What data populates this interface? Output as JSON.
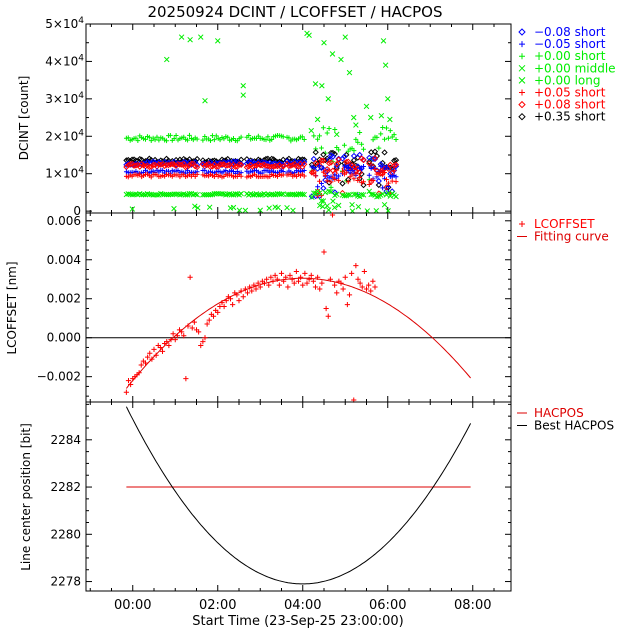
{
  "title": "20250924 DCINT / LCOFFSET / HACPOS",
  "xlabel": "Start Time (23-Sep-25 23:00:00)",
  "x_tick_labels": [
    "00:00",
    "02:00",
    "04:00",
    "06:00",
    "08:00"
  ],
  "x_ticks_hours": [
    1,
    3,
    5,
    7,
    9
  ],
  "xlim_hours": [
    -0.1,
    9.9
  ],
  "colors": {
    "black": "#000000",
    "blue": "#0000ff",
    "green": "#00ee00",
    "red": "#ff0000",
    "fit": "#dd0000"
  },
  "chart_data": [
    {
      "type": "scatter",
      "panel": "DCINT",
      "ylabel": "DCINT [count]",
      "ylim": [
        -500,
        50000
      ],
      "y_ticks": [
        0,
        10000,
        20000,
        30000,
        40000,
        50000
      ],
      "y_tick_labels": [
        "0",
        "1×10^4",
        "2×10^4",
        "3×10^4",
        "4×10^4",
        "5×10^4"
      ],
      "time_range_hours": [
        0.85,
        7.2
      ],
      "legend": [
        {
          "label": "−0.08 short",
          "marker": "diamond",
          "color": "#0000ff"
        },
        {
          "label": "−0.05 short",
          "marker": "plus",
          "color": "#0000ff"
        },
        {
          "label": "+0.00 short",
          "marker": "plus",
          "color": "#00ee00"
        },
        {
          "label": "+0.00 middle",
          "marker": "cross",
          "color": "#00ee00"
        },
        {
          "label": "+0.00 long",
          "marker": "cross",
          "color": "#00ee00"
        },
        {
          "label": "+0.05 short",
          "marker": "plus",
          "color": "#ff0000"
        },
        {
          "label": "+0.08 short",
          "marker": "diamond",
          "color": "#ff0000"
        },
        {
          "label": "+0.35 short",
          "marker": "diamond",
          "color": "#000000"
        }
      ],
      "series_levels": [
        {
          "name": "+0.00 short",
          "level": 19500,
          "marker": "plus",
          "color": "#00ee00"
        },
        {
          "name": "+0.35 short",
          "level": 13500,
          "marker": "diamond",
          "color": "#000000"
        },
        {
          "name": "−0.08 short",
          "level": 12800,
          "marker": "diamond",
          "color": "#0000ff"
        },
        {
          "name": "+0.08 short",
          "level": 12200,
          "marker": "diamond",
          "color": "#ff0000"
        },
        {
          "name": "−0.05 short",
          "level": 10500,
          "marker": "plus",
          "color": "#0000ff"
        },
        {
          "name": "+0.05 short",
          "level": 9500,
          "marker": "plus",
          "color": "#ff0000"
        },
        {
          "name": "+0.00 middle",
          "level": 4500,
          "marker": "cross",
          "color": "#00ee00"
        }
      ],
      "outliers": [
        [
          1.8,
          40500
        ],
        [
          2.15,
          46500
        ],
        [
          2.35,
          45800
        ],
        [
          2.6,
          46500
        ],
        [
          3.0,
          45500
        ],
        [
          2.7,
          29500
        ],
        [
          3.6,
          33500
        ],
        [
          3.6,
          31000
        ],
        [
          5.1,
          47500
        ],
        [
          5.15,
          47000
        ],
        [
          5.3,
          34000
        ],
        [
          5.45,
          33500
        ],
        [
          5.5,
          45000
        ],
        [
          5.6,
          30000
        ],
        [
          5.7,
          42000
        ],
        [
          5.9,
          40500
        ],
        [
          6.0,
          46500
        ],
        [
          6.1,
          37000
        ],
        [
          6.2,
          25000
        ],
        [
          6.25,
          23000
        ],
        [
          6.5,
          28000
        ],
        [
          6.6,
          25000
        ],
        [
          6.9,
          45500
        ],
        [
          6.95,
          39000
        ],
        [
          7.0,
          30000
        ],
        [
          6.85,
          25500
        ],
        [
          7.05,
          24500
        ],
        [
          5.2,
          21500
        ],
        [
          5.35,
          24500
        ],
        [
          5.8,
          20500
        ]
      ],
      "gaps_hours": [
        [
          2.55,
          2.62
        ],
        [
          3.55,
          3.65
        ],
        [
          4.55,
          4.62
        ],
        [
          5.05,
          5.18
        ],
        [
          5.85,
          5.92
        ],
        [
          6.45,
          6.55
        ]
      ]
    },
    {
      "type": "scatter",
      "panel": "LCOFFSET",
      "ylabel": "LCOFFSET [nm]",
      "ylim": [
        -0.0033,
        0.0064
      ],
      "y_ticks": [
        -0.002,
        0.0,
        0.002,
        0.004,
        0.006
      ],
      "y_tick_labels": [
        "−0.002",
        "0.000",
        "0.002",
        "0.004",
        "0.006"
      ],
      "zero_line": 0.0,
      "legend": [
        {
          "label": "LCOFFSET",
          "marker": "plus",
          "color": "#ff0000"
        },
        {
          "label": "Fitting curve",
          "marker": "line",
          "color": "#dd0000"
        }
      ],
      "points": [
        [
          0.85,
          -0.0028
        ],
        [
          0.9,
          -0.0022
        ],
        [
          0.95,
          -0.0024
        ],
        [
          1.0,
          -0.0021
        ],
        [
          1.05,
          -0.002
        ],
        [
          1.1,
          -0.0019
        ],
        [
          1.15,
          -0.0018
        ],
        [
          1.2,
          -0.0014
        ],
        [
          1.25,
          -0.0012
        ],
        [
          1.3,
          -0.0013
        ],
        [
          1.35,
          -0.001
        ],
        [
          1.4,
          -0.0008
        ],
        [
          1.45,
          -0.0011
        ],
        [
          1.5,
          -0.0006
        ],
        [
          1.55,
          -0.0009
        ],
        [
          1.6,
          -0.0004
        ],
        [
          1.65,
          -0.0005
        ],
        [
          1.7,
          -0.0007
        ],
        [
          1.75,
          -0.0003
        ],
        [
          1.8,
          -0.0002
        ],
        [
          1.85,
          -0.0004
        ],
        [
          1.9,
          -0.0001
        ],
        [
          1.95,
          0.0002
        ],
        [
          2.0,
          -0.0001
        ],
        [
          2.05,
          0.0001
        ],
        [
          2.1,
          0.0004
        ],
        [
          2.15,
          0.0003
        ],
        [
          2.2,
          0.0001
        ],
        [
          2.25,
          -0.0021
        ],
        [
          2.3,
          0.0006
        ],
        [
          2.35,
          0.0031
        ],
        [
          2.4,
          0.0005
        ],
        [
          2.45,
          0.0008
        ],
        [
          2.5,
          0.0004
        ],
        [
          2.55,
          0.0003
        ],
        [
          2.6,
          -0.0004
        ],
        [
          2.65,
          -0.0002
        ],
        [
          2.7,
          0.0
        ],
        [
          2.75,
          0.0007
        ],
        [
          2.8,
          0.0009
        ],
        [
          2.85,
          0.0012
        ],
        [
          2.9,
          0.0011
        ],
        [
          2.95,
          0.0014
        ],
        [
          3.0,
          0.0013
        ],
        [
          3.05,
          0.0016
        ],
        [
          3.1,
          0.0018
        ],
        [
          3.15,
          0.0016
        ],
        [
          3.2,
          0.0019
        ],
        [
          3.25,
          0.0021
        ],
        [
          3.3,
          0.002
        ],
        [
          3.35,
          0.0017
        ],
        [
          3.4,
          0.0023
        ],
        [
          3.45,
          0.0022
        ],
        [
          3.5,
          0.0019
        ],
        [
          3.55,
          0.0024
        ],
        [
          3.6,
          0.0021
        ],
        [
          3.65,
          0.0025
        ],
        [
          3.7,
          0.0023
        ],
        [
          3.75,
          0.0026
        ],
        [
          3.8,
          0.0024
        ],
        [
          3.85,
          0.0027
        ],
        [
          3.9,
          0.0025
        ],
        [
          3.95,
          0.0028
        ],
        [
          4.0,
          0.0026
        ],
        [
          4.05,
          0.0029
        ],
        [
          4.1,
          0.0028
        ],
        [
          4.15,
          0.003
        ],
        [
          4.2,
          0.0027
        ],
        [
          4.25,
          0.0031
        ],
        [
          4.3,
          0.0029
        ],
        [
          4.35,
          0.0032
        ],
        [
          4.4,
          0.003
        ],
        [
          4.45,
          0.0027
        ],
        [
          4.5,
          0.0033
        ],
        [
          4.55,
          0.0029
        ],
        [
          4.6,
          0.0031
        ],
        [
          4.65,
          0.0026
        ],
        [
          4.7,
          0.0032
        ],
        [
          4.75,
          0.003
        ],
        [
          4.8,
          0.0028
        ],
        [
          4.85,
          0.0034
        ],
        [
          4.9,
          0.0029
        ],
        [
          4.95,
          0.0031
        ],
        [
          5.0,
          0.0027
        ],
        [
          5.05,
          0.0033
        ],
        [
          5.1,
          0.0028
        ],
        [
          5.15,
          0.003
        ],
        [
          5.2,
          0.0032
        ],
        [
          5.25,
          0.0029
        ],
        [
          5.3,
          0.0026
        ],
        [
          5.35,
          0.0031
        ],
        [
          5.4,
          0.0025
        ],
        [
          5.45,
          0.0028
        ],
        [
          5.5,
          0.0044
        ],
        [
          5.55,
          0.0015
        ],
        [
          5.6,
          0.0011
        ],
        [
          5.65,
          0.003
        ],
        [
          5.7,
          0.0063
        ],
        [
          5.75,
          0.0027
        ],
        [
          5.8,
          0.0023
        ],
        [
          5.85,
          0.0029
        ],
        [
          5.9,
          0.0028
        ],
        [
          5.95,
          0.0025
        ],
        [
          6.0,
          0.0031
        ],
        [
          6.05,
          0.0017
        ],
        [
          6.1,
          0.0022
        ],
        [
          6.15,
          0.0033
        ],
        [
          6.2,
          -0.0032
        ],
        [
          6.25,
          0.0037
        ],
        [
          6.3,
          0.003
        ],
        [
          6.35,
          0.0028
        ],
        [
          6.4,
          0.0026
        ],
        [
          6.45,
          0.0034
        ],
        [
          6.5,
          0.0025
        ],
        [
          6.55,
          0.0027
        ],
        [
          6.6,
          0.0024
        ],
        [
          6.65,
          0.0029
        ],
        [
          6.7,
          0.0026
        ]
      ],
      "fit": {
        "type": "quadratic",
        "vertex_x_hours": 5.0,
        "vertex_y": 0.00305,
        "start": [
          0.85,
          -0.0026
        ]
      },
      "fit_range_hours": [
        0.85,
        8.95
      ]
    },
    {
      "type": "line",
      "panel": "HACPOS",
      "ylabel": "Line center position [bit]",
      "ylim": [
        2277.6,
        2285.6
      ],
      "y_ticks": [
        2278,
        2280,
        2282,
        2284
      ],
      "y_tick_labels": [
        "2278",
        "2280",
        "2282",
        "2284"
      ],
      "legend": [
        {
          "label": "HACPOS",
          "marker": "line",
          "color": "#dd0000"
        },
        {
          "label": "Best HACPOS",
          "marker": "line",
          "color": "#000000"
        }
      ],
      "series": [
        {
          "name": "HACPOS",
          "type": "constant",
          "value": 2282.0,
          "x_range_hours": [
            0.85,
            8.95
          ],
          "color": "#dd0000"
        },
        {
          "name": "Best HACPOS",
          "type": "quadratic",
          "vertex_x_hours": 5.0,
          "vertex_y": 2277.9,
          "start": [
            0.85,
            2285.4
          ],
          "x_range_hours": [
            0.85,
            8.95
          ],
          "color": "#000000"
        }
      ]
    }
  ]
}
